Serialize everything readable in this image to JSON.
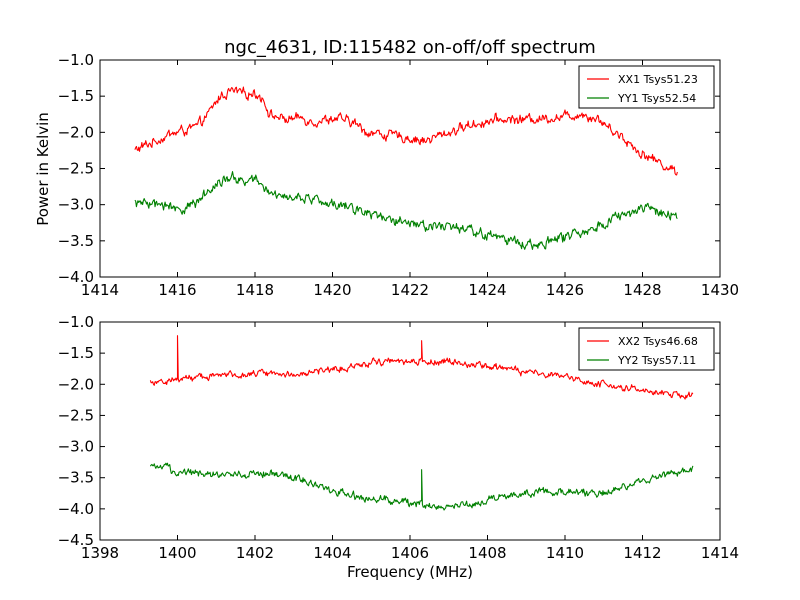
{
  "figure": {
    "title": "ngc_4631, ID:115482 on-off/off spectrum",
    "xlabel": "Frequency (MHz)",
    "ylabel": "Power in Kelvin"
  },
  "chart_data": [
    {
      "type": "line",
      "xlim": [
        1414,
        1430
      ],
      "ylim": [
        -4.0,
        -1.0
      ],
      "xticks": [
        1414,
        1416,
        1418,
        1420,
        1422,
        1424,
        1426,
        1428,
        1430
      ],
      "yticks": [
        -4.0,
        -3.5,
        -3.0,
        -2.5,
        -2.0,
        -1.5,
        -1.0
      ],
      "xtick_labels": [
        "1414",
        "1416",
        "1418",
        "1420",
        "1422",
        "1424",
        "1426",
        "1428",
        "1430"
      ],
      "ytick_labels": [
        "−4.0",
        "−3.5",
        "−3.0",
        "−2.5",
        "−2.0",
        "−1.5",
        "−1.0"
      ],
      "legend_position": "top-right",
      "series": [
        {
          "name": "XX1 Tsys51.23",
          "color": "#ff0000",
          "noise": 0.05,
          "points": [
            [
              1414.9,
              -2.25
            ],
            [
              1415.3,
              -2.15
            ],
            [
              1415.7,
              -2.05
            ],
            [
              1416.1,
              -1.98
            ],
            [
              1416.5,
              -1.93
            ],
            [
              1416.8,
              -1.75
            ],
            [
              1417.1,
              -1.5
            ],
            [
              1417.4,
              -1.43
            ],
            [
              1417.7,
              -1.47
            ],
            [
              1418.0,
              -1.45
            ],
            [
              1418.2,
              -1.53
            ],
            [
              1418.4,
              -1.76
            ],
            [
              1418.8,
              -1.82
            ],
            [
              1419.2,
              -1.8
            ],
            [
              1419.6,
              -1.85
            ],
            [
              1420.0,
              -1.8
            ],
            [
              1420.4,
              -1.85
            ],
            [
              1420.6,
              -1.88
            ],
            [
              1420.8,
              -1.98
            ],
            [
              1421.2,
              -2.02
            ],
            [
              1421.6,
              -2.05
            ],
            [
              1422.0,
              -2.08
            ],
            [
              1422.4,
              -2.12
            ],
            [
              1422.8,
              -2.04
            ],
            [
              1423.2,
              -1.96
            ],
            [
              1423.6,
              -1.89
            ],
            [
              1424.0,
              -1.85
            ],
            [
              1424.5,
              -1.82
            ],
            [
              1425.0,
              -1.82
            ],
            [
              1425.5,
              -1.8
            ],
            [
              1426.0,
              -1.78
            ],
            [
              1426.4,
              -1.74
            ],
            [
              1426.8,
              -1.8
            ],
            [
              1427.2,
              -1.95
            ],
            [
              1427.6,
              -2.12
            ],
            [
              1428.0,
              -2.3
            ],
            [
              1428.4,
              -2.4
            ],
            [
              1428.7,
              -2.5
            ],
            [
              1428.9,
              -2.55
            ]
          ]
        },
        {
          "name": "YY1 Tsys52.54",
          "color": "#008000",
          "noise": 0.05,
          "points": [
            [
              1414.9,
              -2.97
            ],
            [
              1415.3,
              -3.0
            ],
            [
              1415.7,
              -3.02
            ],
            [
              1416.1,
              -3.05
            ],
            [
              1416.5,
              -2.98
            ],
            [
              1416.8,
              -2.8
            ],
            [
              1417.1,
              -2.65
            ],
            [
              1417.4,
              -2.62
            ],
            [
              1417.7,
              -2.68
            ],
            [
              1418.0,
              -2.65
            ],
            [
              1418.2,
              -2.72
            ],
            [
              1418.4,
              -2.88
            ],
            [
              1418.8,
              -2.86
            ],
            [
              1419.2,
              -2.9
            ],
            [
              1419.6,
              -2.95
            ],
            [
              1420.0,
              -3.0
            ],
            [
              1420.4,
              -3.0
            ],
            [
              1420.6,
              -3.05
            ],
            [
              1420.8,
              -3.1
            ],
            [
              1421.2,
              -3.15
            ],
            [
              1421.6,
              -3.2
            ],
            [
              1422.0,
              -3.24
            ],
            [
              1422.4,
              -3.28
            ],
            [
              1422.8,
              -3.3
            ],
            [
              1423.2,
              -3.32
            ],
            [
              1423.6,
              -3.37
            ],
            [
              1424.0,
              -3.42
            ],
            [
              1424.5,
              -3.48
            ],
            [
              1425.0,
              -3.55
            ],
            [
              1425.5,
              -3.52
            ],
            [
              1426.0,
              -3.45
            ],
            [
              1426.4,
              -3.38
            ],
            [
              1426.8,
              -3.3
            ],
            [
              1427.2,
              -3.2
            ],
            [
              1427.6,
              -3.12
            ],
            [
              1428.0,
              -3.08
            ],
            [
              1428.4,
              -3.1
            ],
            [
              1428.7,
              -3.15
            ],
            [
              1428.9,
              -3.17
            ]
          ]
        }
      ]
    },
    {
      "type": "line",
      "xlim": [
        1398,
        1414
      ],
      "ylim": [
        -4.5,
        -1.0
      ],
      "xticks": [
        1398,
        1400,
        1402,
        1404,
        1406,
        1408,
        1410,
        1412,
        1414
      ],
      "yticks": [
        -4.5,
        -4.0,
        -3.5,
        -3.0,
        -2.5,
        -2.0,
        -1.5,
        -1.0
      ],
      "xtick_labels": [
        "1398",
        "1400",
        "1402",
        "1404",
        "1406",
        "1408",
        "1410",
        "1412",
        "1414"
      ],
      "ytick_labels": [
        "−4.5",
        "−4.0",
        "−3.5",
        "−3.0",
        "−2.5",
        "−2.0",
        "−1.5",
        "−1.0"
      ],
      "legend_position": "top-right",
      "series": [
        {
          "name": "XX2 Tsys46.68",
          "color": "#ff0000",
          "noise": 0.04,
          "points": [
            [
              1399.3,
              -1.95
            ],
            [
              1399.7,
              -1.95
            ],
            [
              1400.0,
              -1.92
            ],
            [
              1400.5,
              -1.88
            ],
            [
              1401.0,
              -1.86
            ],
            [
              1401.5,
              -1.84
            ],
            [
              1402.0,
              -1.82
            ],
            [
              1402.5,
              -1.82
            ],
            [
              1403.0,
              -1.84
            ],
            [
              1403.5,
              -1.8
            ],
            [
              1404.0,
              -1.76
            ],
            [
              1404.5,
              -1.7
            ],
            [
              1405.0,
              -1.64
            ],
            [
              1405.5,
              -1.62
            ],
            [
              1406.0,
              -1.63
            ],
            [
              1406.5,
              -1.64
            ],
            [
              1407.0,
              -1.63
            ],
            [
              1407.5,
              -1.68
            ],
            [
              1408.0,
              -1.72
            ],
            [
              1408.5,
              -1.76
            ],
            [
              1409.0,
              -1.8
            ],
            [
              1409.5,
              -1.83
            ],
            [
              1410.0,
              -1.88
            ],
            [
              1410.5,
              -1.94
            ],
            [
              1411.0,
              -2.0
            ],
            [
              1411.5,
              -2.05
            ],
            [
              1412.0,
              -2.1
            ],
            [
              1412.5,
              -2.15
            ],
            [
              1413.0,
              -2.18
            ],
            [
              1413.3,
              -2.18
            ]
          ],
          "spikes": [
            [
              1400.0,
              -1.22
            ],
            [
              1406.3,
              -1.3
            ]
          ]
        },
        {
          "name": "YY2 Tsys57.11",
          "color": "#008000",
          "noise": 0.045,
          "points": [
            [
              1399.3,
              -3.35
            ],
            [
              1399.7,
              -3.35
            ],
            [
              1400.0,
              -3.4
            ],
            [
              1400.5,
              -3.42
            ],
            [
              1401.0,
              -3.44
            ],
            [
              1401.5,
              -3.44
            ],
            [
              1402.0,
              -3.42
            ],
            [
              1402.5,
              -3.45
            ],
            [
              1403.0,
              -3.5
            ],
            [
              1403.5,
              -3.6
            ],
            [
              1404.0,
              -3.7
            ],
            [
              1404.5,
              -3.78
            ],
            [
              1405.0,
              -3.84
            ],
            [
              1405.5,
              -3.87
            ],
            [
              1406.0,
              -3.9
            ],
            [
              1406.5,
              -3.95
            ],
            [
              1407.0,
              -3.95
            ],
            [
              1407.5,
              -3.92
            ],
            [
              1408.0,
              -3.87
            ],
            [
              1408.5,
              -3.8
            ],
            [
              1409.0,
              -3.75
            ],
            [
              1409.5,
              -3.72
            ],
            [
              1410.0,
              -3.72
            ],
            [
              1410.5,
              -3.74
            ],
            [
              1411.0,
              -3.74
            ],
            [
              1411.5,
              -3.65
            ],
            [
              1412.0,
              -3.55
            ],
            [
              1412.5,
              -3.48
            ],
            [
              1413.0,
              -3.4
            ],
            [
              1413.3,
              -3.38
            ]
          ],
          "spikes": [
            [
              1406.3,
              -3.37
            ]
          ]
        }
      ]
    }
  ]
}
